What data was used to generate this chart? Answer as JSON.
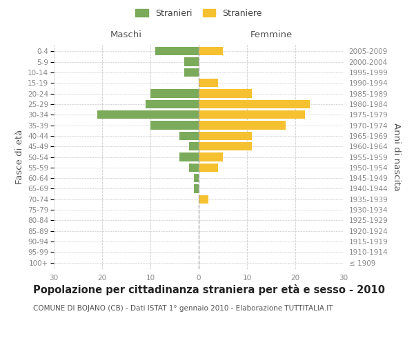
{
  "age_groups": [
    "100+",
    "95-99",
    "90-94",
    "85-89",
    "80-84",
    "75-79",
    "70-74",
    "65-69",
    "60-64",
    "55-59",
    "50-54",
    "45-49",
    "40-44",
    "35-39",
    "30-34",
    "25-29",
    "20-24",
    "15-19",
    "10-14",
    "5-9",
    "0-4"
  ],
  "birth_years": [
    "≤ 1909",
    "1910-1914",
    "1915-1919",
    "1920-1924",
    "1925-1929",
    "1930-1934",
    "1935-1939",
    "1940-1944",
    "1945-1949",
    "1950-1954",
    "1955-1959",
    "1960-1964",
    "1965-1969",
    "1970-1974",
    "1975-1979",
    "1980-1984",
    "1985-1989",
    "1990-1994",
    "1995-1999",
    "2000-2004",
    "2005-2009"
  ],
  "maschi": [
    0,
    0,
    0,
    0,
    0,
    0,
    0,
    1,
    1,
    2,
    4,
    2,
    4,
    10,
    21,
    11,
    10,
    0,
    3,
    3,
    9
  ],
  "femmine": [
    0,
    0,
    0,
    0,
    0,
    0,
    2,
    0,
    0,
    4,
    5,
    11,
    11,
    18,
    22,
    23,
    11,
    4,
    0,
    0,
    5
  ],
  "maschi_color": "#7aaa5a",
  "femmine_color": "#f5c130",
  "background_color": "#ffffff",
  "grid_color": "#cccccc",
  "title": "Popolazione per cittadinanza straniera per età e sesso - 2010",
  "subtitle": "COMUNE DI BOJANO (CB) - Dati ISTAT 1° gennaio 2010 - Elaborazione TUTTITALIA.IT",
  "xlabel_left": "Maschi",
  "xlabel_right": "Femmine",
  "ylabel_left": "Fasce di età",
  "ylabel_right": "Anni di nascita",
  "legend_stranieri": "Stranieri",
  "legend_straniere": "Straniere",
  "xlim": 30,
  "bar_height": 0.8,
  "title_fontsize": 10.5,
  "subtitle_fontsize": 7.5,
  "tick_fontsize": 7.5,
  "label_fontsize": 9.5
}
